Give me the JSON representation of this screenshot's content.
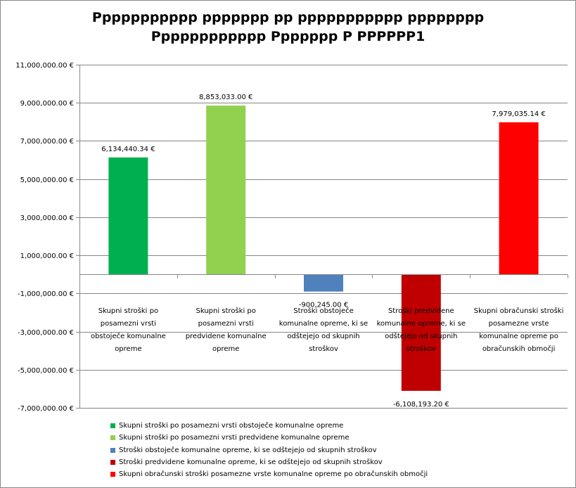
{
  "chart_data": {
    "type": "bar",
    "title_lines": [
      "Ppppppppppp ppppppp pp ppppppppppp pppppppp",
      "Pppppppppppp Ppppppp P PPPPPP1"
    ],
    "ylim": [
      -7000000,
      11000000
    ],
    "yticks": [
      11000000,
      9000000,
      7000000,
      5000000,
      3000000,
      1000000,
      -1000000,
      -3000000,
      -5000000,
      -7000000
    ],
    "ytick_labels": [
      "11,000,000.00 €",
      "9,000,000.00 €",
      "7,000,000.00 €",
      "5,000,000.00 €",
      "3,000,000.00 €",
      "1,000,000.00 €",
      "-1,000,000.00 €",
      "-3,000,000.00 €",
      "-5,000,000.00 €",
      "-7,000,000.00 €"
    ],
    "grid": true,
    "legend_position": "bottom",
    "categories": [
      "Skupni stroški po posamezni vrsti obstoječe komunalne opreme",
      "Skupni stroški po posamezni vrsti predvidene komunalne opreme",
      "Stroški obstoječe komunalne opreme, ki se odštejejo od skupnih stroškov",
      "Stroški predvidene komunalne opreme, ki se odštejejo od skupnih stroškov",
      "Skupni obračunski stroški posamezne vrste komunalne opreme po obračunskih območji"
    ],
    "category_lines": [
      [
        "Skupni stroški po",
        "posamezni vrsti",
        "obstoječe komunalne",
        "opreme"
      ],
      [
        "Skupni stroški po",
        "posamezni vrsti",
        "predvidene komunalne",
        "opreme"
      ],
      [
        "Stroški obstoječe",
        "komunalne opreme, ki se",
        "odštejejo od skupnih",
        "stroškov"
      ],
      [
        "Stroški predvidene",
        "komunalne opreme, ki se",
        "odštejejo od skupnih",
        "stroškov"
      ],
      [
        "Skupni obračunski stroški",
        "posamezne vrste",
        "komunalne opreme po",
        "obračunskih območji"
      ]
    ],
    "values": [
      6134440.34,
      8853033.0,
      -900245.0,
      -6108193.2,
      7979035.14
    ],
    "value_labels": [
      "6,134,440.34 €",
      "8,853,033.00 €",
      "-900,245.00 €",
      "-6,108,193.20 €",
      "7,979,035.14 €"
    ],
    "colors": [
      "#00b050",
      "#92d050",
      "#4f81bd",
      "#c00000",
      "#ff0000"
    ],
    "legend": [
      "Skupni stroški po posamezni vrsti obstoječe komunalne opreme",
      "Skupni stroški po posamezni vrsti predvidene komunalne opreme",
      "Stroški obstoječe komunalne opreme, ki se odštejejo od skupnih stroškov",
      "Stroški predvidene komunalne opreme, ki se odštejejo od skupnih stroškov",
      "Skupni obračunski stroški posamezne vrste komunalne opreme po obračunskih območji"
    ]
  }
}
